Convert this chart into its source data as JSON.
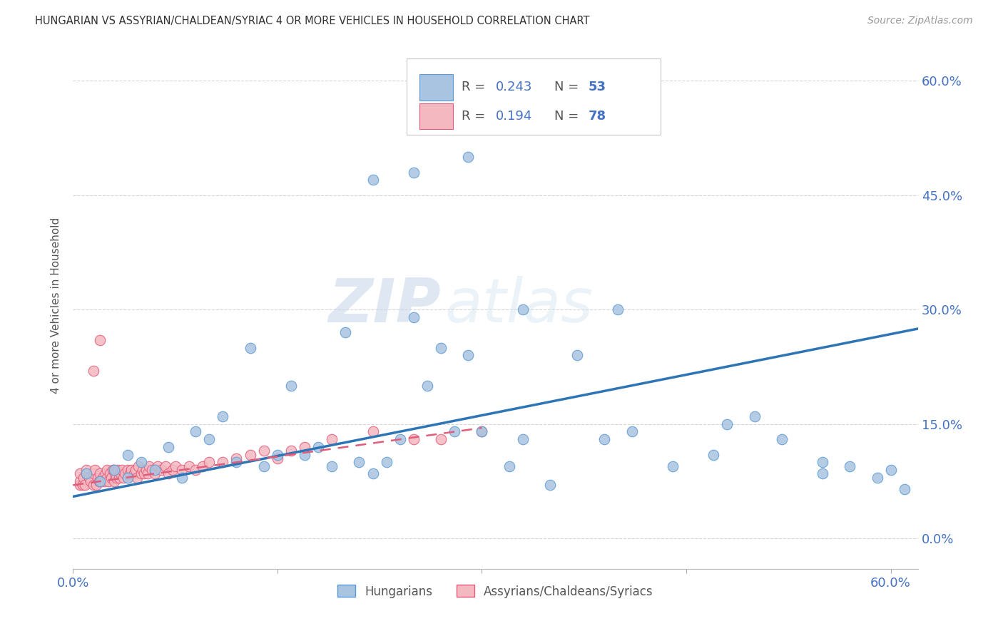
{
  "title": "HUNGARIAN VS ASSYRIAN/CHALDEAN/SYRIAC 4 OR MORE VEHICLES IN HOUSEHOLD CORRELATION CHART",
  "source": "Source: ZipAtlas.com",
  "ylabel": "4 or more Vehicles in Household",
  "xlim": [
    0.0,
    0.62
  ],
  "ylim": [
    -0.04,
    0.65
  ],
  "yticks": [
    0.0,
    0.15,
    0.3,
    0.45,
    0.6
  ],
  "xticks": [
    0.0,
    0.15,
    0.3,
    0.45,
    0.6
  ],
  "hungarian_color": "#a8c4e0",
  "hungarian_edge": "#5b9bd5",
  "assyrian_color": "#f4b8c1",
  "assyrian_edge": "#e05c7a",
  "trend_hungarian_color": "#2e75b6",
  "trend_assyrian_color": "#e05c7a",
  "axis_color": "#4472c4",
  "background_color": "#ffffff",
  "grid_color": "#cccccc",
  "watermark_zip": "ZIP",
  "watermark_atlas": "atlas",
  "hun_trend_x0": 0.0,
  "hun_trend_y0": 0.055,
  "hun_trend_x1": 0.62,
  "hun_trend_y1": 0.275,
  "asy_trend_x0": 0.0,
  "asy_trend_y0": 0.07,
  "asy_trend_x1": 0.3,
  "asy_trend_y1": 0.145,
  "hungarian_x": [
    0.01,
    0.02,
    0.03,
    0.04,
    0.04,
    0.05,
    0.06,
    0.07,
    0.08,
    0.09,
    0.1,
    0.11,
    0.12,
    0.13,
    0.14,
    0.15,
    0.16,
    0.17,
    0.18,
    0.19,
    0.2,
    0.21,
    0.22,
    0.23,
    0.24,
    0.25,
    0.26,
    0.27,
    0.28,
    0.29,
    0.3,
    0.32,
    0.33,
    0.35,
    0.37,
    0.39,
    0.41,
    0.44,
    0.47,
    0.5,
    0.52,
    0.55,
    0.57,
    0.59,
    0.61,
    0.22,
    0.25,
    0.29,
    0.33,
    0.4,
    0.48,
    0.55,
    0.6
  ],
  "hungarian_y": [
    0.085,
    0.075,
    0.09,
    0.11,
    0.08,
    0.1,
    0.09,
    0.12,
    0.08,
    0.14,
    0.13,
    0.16,
    0.1,
    0.25,
    0.095,
    0.11,
    0.2,
    0.11,
    0.12,
    0.095,
    0.27,
    0.1,
    0.085,
    0.1,
    0.13,
    0.29,
    0.2,
    0.25,
    0.14,
    0.24,
    0.14,
    0.095,
    0.13,
    0.07,
    0.24,
    0.13,
    0.14,
    0.095,
    0.11,
    0.16,
    0.13,
    0.085,
    0.095,
    0.08,
    0.065,
    0.47,
    0.48,
    0.5,
    0.3,
    0.3,
    0.15,
    0.1,
    0.09
  ],
  "assyrian_x": [
    0.005,
    0.005,
    0.005,
    0.007,
    0.008,
    0.009,
    0.01,
    0.01,
    0.012,
    0.013,
    0.015,
    0.015,
    0.015,
    0.016,
    0.017,
    0.018,
    0.019,
    0.02,
    0.02,
    0.021,
    0.022,
    0.023,
    0.024,
    0.025,
    0.025,
    0.026,
    0.027,
    0.028,
    0.029,
    0.03,
    0.03,
    0.031,
    0.032,
    0.033,
    0.034,
    0.035,
    0.036,
    0.037,
    0.038,
    0.04,
    0.04,
    0.042,
    0.043,
    0.045,
    0.046,
    0.047,
    0.048,
    0.05,
    0.051,
    0.052,
    0.054,
    0.055,
    0.056,
    0.058,
    0.06,
    0.062,
    0.065,
    0.068,
    0.07,
    0.073,
    0.075,
    0.08,
    0.085,
    0.09,
    0.095,
    0.1,
    0.11,
    0.12,
    0.13,
    0.14,
    0.15,
    0.16,
    0.17,
    0.19,
    0.22,
    0.25,
    0.27,
    0.3
  ],
  "assyrian_y": [
    0.07,
    0.075,
    0.085,
    0.07,
    0.08,
    0.07,
    0.085,
    0.09,
    0.08,
    0.075,
    0.22,
    0.085,
    0.07,
    0.09,
    0.07,
    0.08,
    0.075,
    0.085,
    0.26,
    0.075,
    0.08,
    0.075,
    0.085,
    0.08,
    0.09,
    0.075,
    0.085,
    0.08,
    0.09,
    0.075,
    0.09,
    0.085,
    0.08,
    0.09,
    0.08,
    0.085,
    0.09,
    0.08,
    0.085,
    0.09,
    0.08,
    0.085,
    0.09,
    0.085,
    0.09,
    0.08,
    0.095,
    0.085,
    0.09,
    0.085,
    0.09,
    0.085,
    0.095,
    0.09,
    0.085,
    0.095,
    0.09,
    0.095,
    0.085,
    0.09,
    0.095,
    0.09,
    0.095,
    0.09,
    0.095,
    0.1,
    0.1,
    0.105,
    0.11,
    0.115,
    0.105,
    0.115,
    0.12,
    0.13,
    0.14,
    0.13,
    0.13,
    0.14
  ]
}
